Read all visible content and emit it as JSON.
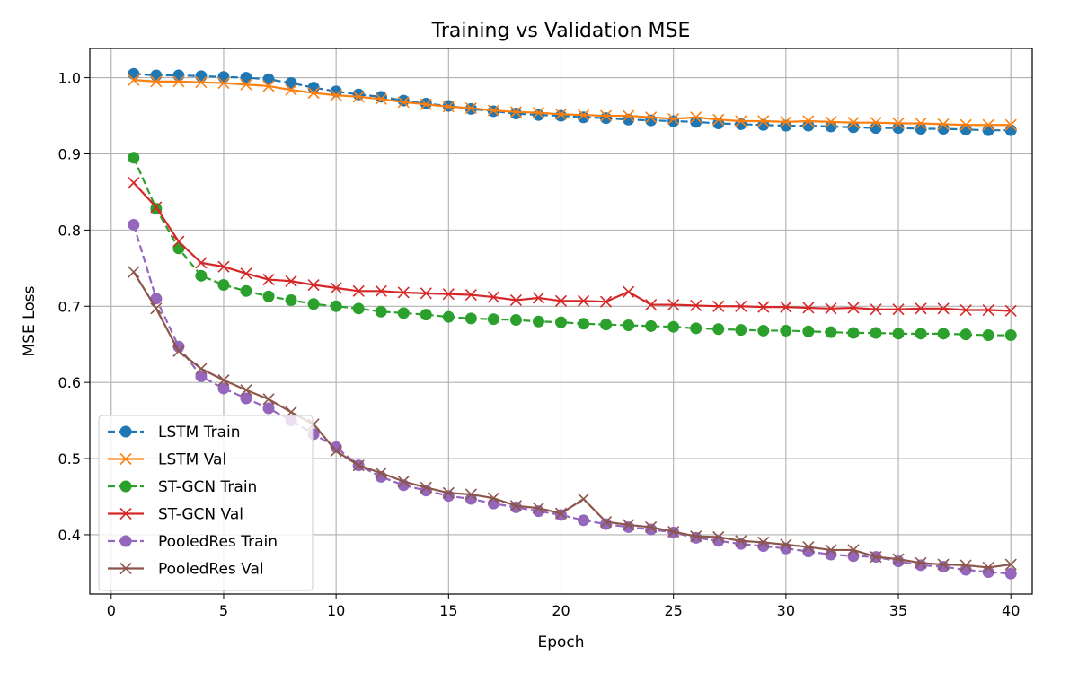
{
  "chart_data": {
    "type": "line",
    "title": "Training vs Validation MSE",
    "xlabel": "Epoch",
    "ylabel": "MSE Loss",
    "xlim": [
      -0.95,
      40.95
    ],
    "ylim": [
      0.3222,
      1.0384
    ],
    "x_ticks": [
      0,
      5,
      10,
      15,
      20,
      25,
      30,
      35,
      40
    ],
    "y_ticks": [
      0.4,
      0.5,
      0.6,
      0.7,
      0.8,
      0.9,
      1.0
    ],
    "x_tick_labels": [
      "0",
      "5",
      "10",
      "15",
      "20",
      "25",
      "30",
      "35",
      "40"
    ],
    "y_tick_labels": [
      "0.4",
      "0.5",
      "0.6",
      "0.7",
      "0.8",
      "0.9",
      "1.0"
    ],
    "grid": true,
    "legend_position": "lower-left",
    "x": [
      1,
      2,
      3,
      4,
      5,
      6,
      7,
      8,
      9,
      10,
      11,
      12,
      13,
      14,
      15,
      16,
      17,
      18,
      19,
      20,
      21,
      22,
      23,
      24,
      25,
      26,
      27,
      28,
      29,
      30,
      31,
      32,
      33,
      34,
      35,
      36,
      37,
      38,
      39,
      40
    ],
    "series": [
      {
        "name": "LSTM Train",
        "color": "#1f77b4",
        "marker": "circle",
        "linestyle": "dashed",
        "values": [
          1.005,
          1.003,
          1.003,
          1.002,
          1.001,
          1.0,
          0.998,
          0.993,
          0.987,
          0.982,
          0.978,
          0.975,
          0.97,
          0.966,
          0.963,
          0.959,
          0.956,
          0.953,
          0.951,
          0.95,
          0.948,
          0.947,
          0.945,
          0.944,
          0.943,
          0.942,
          0.94,
          0.939,
          0.938,
          0.937,
          0.937,
          0.936,
          0.935,
          0.934,
          0.934,
          0.933,
          0.933,
          0.932,
          0.931,
          0.931
        ]
      },
      {
        "name": "LSTM Val",
        "color": "#ff7f0e",
        "marker": "x",
        "linestyle": "solid",
        "values": [
          0.997,
          0.995,
          0.995,
          0.994,
          0.993,
          0.991,
          0.989,
          0.984,
          0.98,
          0.977,
          0.975,
          0.972,
          0.968,
          0.965,
          0.962,
          0.96,
          0.957,
          0.955,
          0.954,
          0.952,
          0.951,
          0.95,
          0.95,
          0.948,
          0.946,
          0.948,
          0.945,
          0.943,
          0.943,
          0.942,
          0.943,
          0.942,
          0.941,
          0.941,
          0.94,
          0.94,
          0.939,
          0.938,
          0.938,
          0.938
        ]
      },
      {
        "name": "ST-GCN Train",
        "color": "#2ca02c",
        "marker": "circle",
        "linestyle": "dashed",
        "values": [
          0.895,
          0.828,
          0.776,
          0.74,
          0.728,
          0.72,
          0.713,
          0.708,
          0.703,
          0.7,
          0.697,
          0.693,
          0.691,
          0.689,
          0.686,
          0.684,
          0.683,
          0.682,
          0.68,
          0.679,
          0.677,
          0.676,
          0.675,
          0.674,
          0.673,
          0.671,
          0.67,
          0.669,
          0.668,
          0.668,
          0.667,
          0.666,
          0.665,
          0.665,
          0.664,
          0.664,
          0.664,
          0.663,
          0.662,
          0.662
        ]
      },
      {
        "name": "ST-GCN Val",
        "color": "#d62728",
        "marker": "x",
        "linestyle": "solid",
        "values": [
          0.862,
          0.83,
          0.785,
          0.757,
          0.752,
          0.743,
          0.735,
          0.733,
          0.728,
          0.724,
          0.72,
          0.72,
          0.718,
          0.717,
          0.716,
          0.715,
          0.712,
          0.708,
          0.711,
          0.707,
          0.707,
          0.706,
          0.719,
          0.702,
          0.702,
          0.701,
          0.7,
          0.7,
          0.699,
          0.699,
          0.698,
          0.697,
          0.698,
          0.696,
          0.696,
          0.697,
          0.697,
          0.695,
          0.695,
          0.694
        ]
      },
      {
        "name": "PooledRes Train",
        "color": "#9467bd",
        "marker": "circle",
        "linestyle": "dashed",
        "values": [
          0.807,
          0.71,
          0.647,
          0.608,
          0.592,
          0.579,
          0.566,
          0.55,
          0.532,
          0.515,
          0.491,
          0.476,
          0.465,
          0.458,
          0.451,
          0.447,
          0.441,
          0.436,
          0.431,
          0.426,
          0.419,
          0.414,
          0.41,
          0.407,
          0.403,
          0.396,
          0.392,
          0.388,
          0.385,
          0.382,
          0.378,
          0.374,
          0.372,
          0.371,
          0.365,
          0.36,
          0.358,
          0.354,
          0.351,
          0.349
        ]
      },
      {
        "name": "PooledRes Val",
        "color": "#8c564b",
        "marker": "x",
        "linestyle": "solid",
        "values": [
          0.745,
          0.697,
          0.641,
          0.618,
          0.603,
          0.59,
          0.578,
          0.561,
          0.545,
          0.51,
          0.491,
          0.481,
          0.47,
          0.462,
          0.455,
          0.453,
          0.448,
          0.438,
          0.435,
          0.428,
          0.447,
          0.417,
          0.413,
          0.41,
          0.404,
          0.398,
          0.397,
          0.392,
          0.39,
          0.387,
          0.384,
          0.38,
          0.38,
          0.371,
          0.368,
          0.363,
          0.361,
          0.36,
          0.357,
          0.361
        ]
      }
    ]
  }
}
